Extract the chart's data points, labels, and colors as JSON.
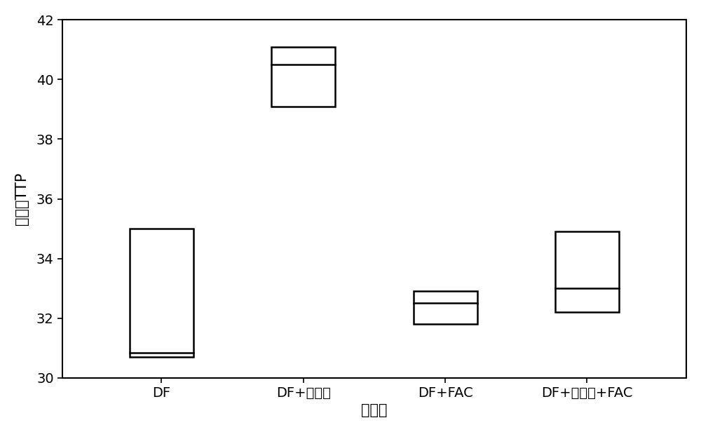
{
  "title": "",
  "xlabel": "培养基",
  "ylabel": "稀释液TTP",
  "categories": [
    "DF",
    "DF+香豆素",
    "DF+FAC",
    "DF+香豆素+FAC"
  ],
  "boxes": [
    {
      "q1": 30.7,
      "median": 30.85,
      "q3": 35.0
    },
    {
      "q1": 39.1,
      "median": 40.5,
      "q3": 41.1
    },
    {
      "q1": 31.8,
      "median": 32.5,
      "q3": 32.9
    },
    {
      "q1": 32.2,
      "median": 33.0,
      "q3": 34.9
    }
  ],
  "ylim": [
    30,
    42
  ],
  "yticks": [
    30,
    32,
    34,
    36,
    38,
    40,
    42
  ],
  "box_width": 0.45,
  "box_color": "white",
  "box_edge_color": "black",
  "median_color": "black",
  "background_color": "white",
  "fig_background": "white",
  "linewidth": 1.8,
  "xlabel_fontsize": 15,
  "ylabel_fontsize": 15,
  "tick_fontsize": 14
}
